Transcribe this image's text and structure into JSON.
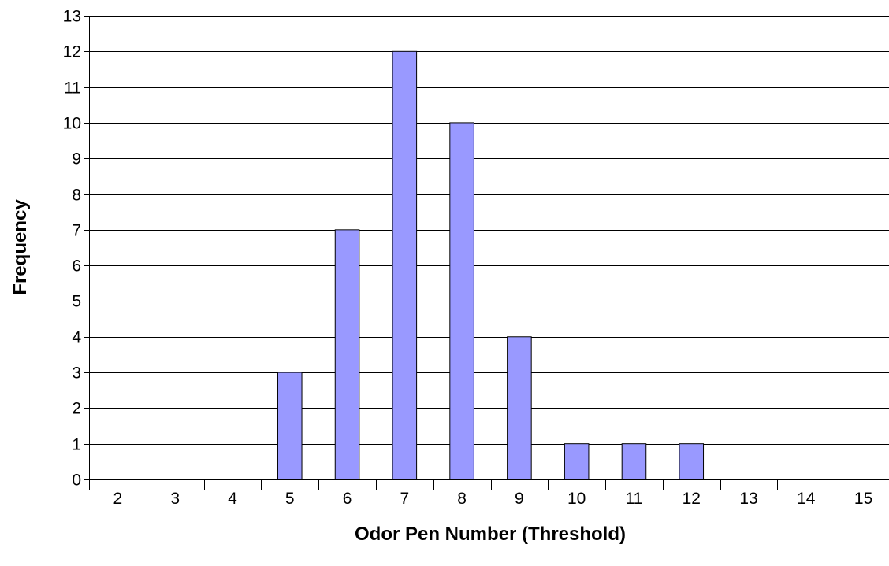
{
  "chart_data": {
    "type": "bar",
    "categories": [
      "2",
      "3",
      "4",
      "5",
      "6",
      "7",
      "8",
      "9",
      "10",
      "11",
      "12",
      "13",
      "14",
      "15"
    ],
    "values": [
      0,
      0,
      0,
      3,
      7,
      12,
      10,
      4,
      1,
      1,
      1,
      0,
      0,
      0
    ],
    "title": "",
    "xlabel": "Odor Pen Number (Threshold)",
    "ylabel": "Frequency",
    "ylim": [
      0,
      13
    ],
    "yticks": [
      "0",
      "1",
      "2",
      "3",
      "4",
      "5",
      "6",
      "7",
      "8",
      "9",
      "10",
      "11",
      "12",
      "13"
    ],
    "grid": true,
    "legend": "none",
    "bar_color": "#9999ff"
  }
}
